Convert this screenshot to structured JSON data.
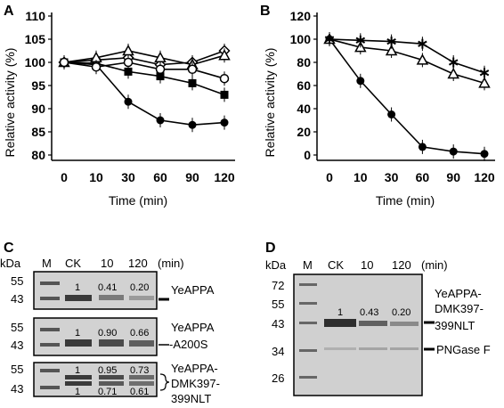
{
  "chart_data": [
    {
      "panel": "A",
      "type": "line",
      "x": [
        0,
        10,
        30,
        60,
        90,
        120
      ],
      "ylabel": "Relative activity (%)",
      "xlabel": "Time (min)",
      "ylim": [
        80,
        110
      ],
      "y_ticks": [
        80,
        85,
        90,
        95,
        100,
        105,
        110
      ],
      "x_ticks": [
        "0",
        "10",
        "30",
        "60",
        "90",
        "120"
      ],
      "series": [
        {
          "marker": "circle",
          "values": [
            100,
            99.5,
            91.5,
            87.5,
            86.5,
            87
          ]
        },
        {
          "marker": "square",
          "values": [
            100,
            99.8,
            98.0,
            97.0,
            95.5,
            93.0
          ]
        },
        {
          "marker": "diamond",
          "values": [
            100,
            100.5,
            101.0,
            99.5,
            100.0,
            102.5
          ]
        },
        {
          "marker": "triangle",
          "values": [
            100,
            101.0,
            102.5,
            101.0,
            99.5,
            101.5
          ]
        },
        {
          "marker": "open-circle",
          "values": [
            100,
            99.0,
            100.0,
            98.5,
            98.5,
            96.5
          ]
        }
      ]
    },
    {
      "panel": "B",
      "type": "line",
      "x": [
        0,
        10,
        30,
        60,
        90,
        120
      ],
      "ylabel": "Relative activity (%)",
      "xlabel": "Time (min)",
      "ylim": [
        0,
        120
      ],
      "y_ticks": [
        0,
        20,
        40,
        60,
        80,
        100,
        120
      ],
      "x_ticks": [
        "0",
        "10",
        "30",
        "60",
        "90",
        "120"
      ],
      "series": [
        {
          "marker": "circle",
          "values": [
            100,
            64,
            35,
            7,
            3,
            1
          ]
        },
        {
          "marker": "triangle",
          "values": [
            100,
            93,
            90,
            82,
            70,
            62
          ]
        },
        {
          "marker": "star",
          "values": [
            100,
            99,
            98,
            96,
            80,
            71
          ]
        }
      ]
    }
  ],
  "gels": {
    "C": {
      "panel": "C",
      "kda": "kDa",
      "lanes": [
        "M",
        "CK",
        "10",
        "120"
      ],
      "unit": "(min)",
      "boxes": [
        {
          "markers": [
            "55",
            "43"
          ],
          "values": [
            "1",
            "0.41",
            "0.20"
          ],
          "label1": "YeAPPA",
          "label2": "",
          "label3": ""
        },
        {
          "markers": [
            "55",
            "43"
          ],
          "values": [
            "1",
            "0.90",
            "0.66"
          ],
          "label1": "YeAPPA",
          "label2": "-A200S",
          "label3": ""
        },
        {
          "markers": [
            "55",
            "43"
          ],
          "values": [
            "1",
            "0.95",
            "0.73"
          ],
          "values2": [
            "1",
            "0.71",
            "0.61"
          ],
          "label1": "YeAPPA-",
          "label2": "DMK397-",
          "label3": "399NLT"
        }
      ]
    },
    "D": {
      "panel": "D",
      "kda": "kDa",
      "lanes": [
        "M",
        "CK",
        "10",
        "120"
      ],
      "unit": "(min)",
      "markers": [
        "72",
        "55",
        "43",
        "34",
        "26"
      ],
      "values": [
        "1",
        "0.43",
        "0.20"
      ],
      "label1": "YeAPPA-",
      "label2": "DMK397-",
      "label3": "399NLT",
      "label4": "PNGase F"
    }
  }
}
